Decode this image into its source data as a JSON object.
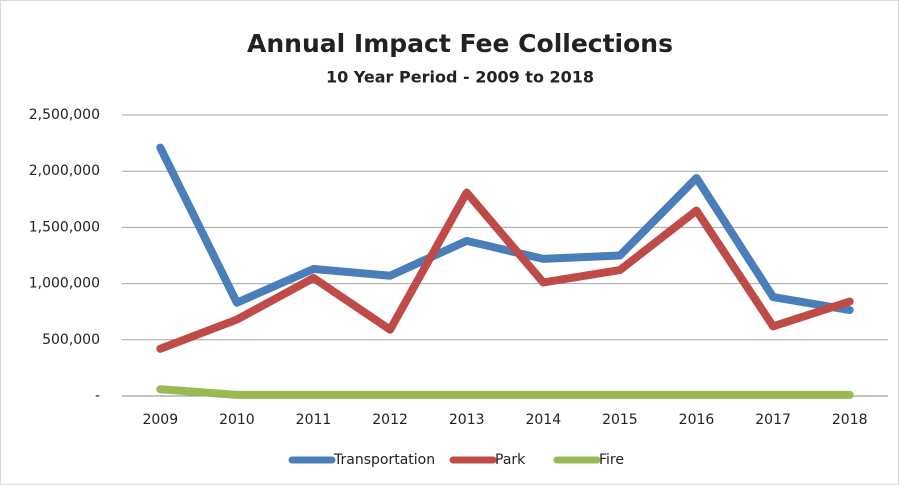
{
  "chart_data": {
    "type": "line",
    "title": "Annual Impact Fee Collections",
    "subtitle": "10 Year Period - 2009 to 2018",
    "categories": [
      "2009",
      "2010",
      "2011",
      "2012",
      "2013",
      "2014",
      "2015",
      "2016",
      "2017",
      "2018"
    ],
    "series": [
      {
        "name": "Transportation",
        "color": "#4a7ebb",
        "values": [
          2210000,
          830000,
          1130000,
          1070000,
          1380000,
          1220000,
          1250000,
          1940000,
          880000,
          765000
        ]
      },
      {
        "name": "Park",
        "color": "#be4b48",
        "values": [
          420000,
          680000,
          1050000,
          590000,
          1810000,
          1010000,
          1120000,
          1650000,
          620000,
          840000
        ]
      },
      {
        "name": "Fire",
        "color": "#98b954",
        "values": [
          60000,
          10000,
          10000,
          10000,
          10000,
          10000,
          10000,
          10000,
          10000,
          10000
        ]
      }
    ],
    "ylim": [
      0,
      2500000
    ],
    "yticks": [
      {
        "value": 0,
        "label": "-"
      },
      {
        "value": 500000,
        "label": "500,000"
      },
      {
        "value": 1000000,
        "label": "1,000,000"
      },
      {
        "value": 1500000,
        "label": "1,500,000"
      },
      {
        "value": 2000000,
        "label": "2,000,000"
      },
      {
        "value": 2500000,
        "label": "2,500,000"
      }
    ],
    "grid": true,
    "legend": "bottom"
  }
}
